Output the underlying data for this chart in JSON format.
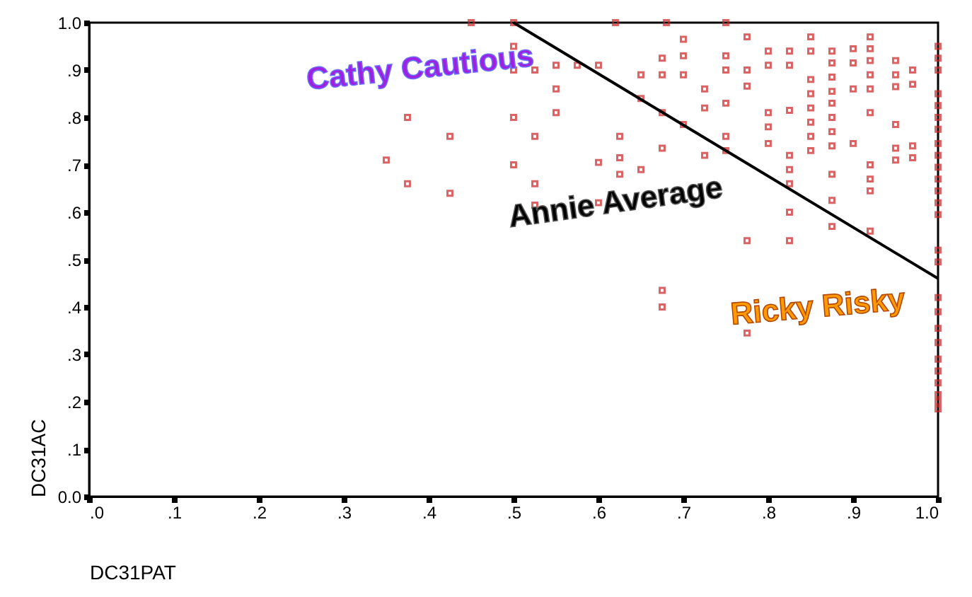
{
  "chart_data": {
    "type": "scatter",
    "xlabel": "DC31PAT",
    "ylabel": "DC31AC",
    "xlim": [
      0,
      1
    ],
    "ylim": [
      0,
      1
    ],
    "xticks": [
      {
        "value": 0,
        "label": ".0"
      },
      {
        "value": 0.1,
        "label": ".1"
      },
      {
        "value": 0.2,
        "label": ".2"
      },
      {
        "value": 0.3,
        "label": ".3"
      },
      {
        "value": 0.4,
        "label": ".4"
      },
      {
        "value": 0.5,
        "label": ".5"
      },
      {
        "value": 0.6,
        "label": ".6"
      },
      {
        "value": 0.7,
        "label": ".7"
      },
      {
        "value": 0.8,
        "label": ".8"
      },
      {
        "value": 0.9,
        "label": ".9"
      },
      {
        "value": 1,
        "label": "1.0"
      }
    ],
    "yticks": [
      {
        "value": 0,
        "label": "0.0"
      },
      {
        "value": 0.1,
        "label": ".1"
      },
      {
        "value": 0.2,
        "label": ".2"
      },
      {
        "value": 0.3,
        "label": ".3"
      },
      {
        "value": 0.4,
        "label": ".4"
      },
      {
        "value": 0.5,
        "label": ".5"
      },
      {
        "value": 0.6,
        "label": ".6"
      },
      {
        "value": 0.7,
        "label": ".7"
      },
      {
        "value": 0.8,
        "label": ".8"
      },
      {
        "value": 0.9,
        "label": ".9"
      },
      {
        "value": 1,
        "label": "1.0"
      }
    ],
    "series": [
      {
        "marker": "square",
        "color": "#cc2222",
        "x": [
          0.45,
          0.5,
          0.62,
          0.68,
          0.5,
          0.5,
          0.525,
          0.55,
          0.55,
          0.575,
          0.6,
          0.55,
          0.65,
          0.65,
          0.675,
          0.675,
          0.375,
          0.425,
          0.5,
          0.525,
          0.35,
          0.375,
          0.425,
          0.5,
          0.525,
          0.525,
          0.6,
          0.625,
          0.625,
          0.625,
          0.65,
          0.6,
          0.675,
          0.675,
          0.75,
          0.7,
          0.7,
          0.7,
          0.725,
          0.725,
          0.75,
          0.75,
          0.75,
          0.775,
          0.775,
          0.775,
          0.8,
          0.8,
          0.825,
          0.825,
          0.85,
          0.85,
          0.875,
          0.9,
          0.92,
          0.92,
          0.875,
          0.9,
          0.92,
          0.95,
          0.92,
          0.95,
          0.97,
          0.85,
          0.875,
          0.85,
          0.875,
          0.9,
          0.92,
          0.95,
          0.97,
          0.85,
          0.875,
          0.8,
          0.825,
          0.92,
          0.85,
          0.875,
          0.8,
          0.95,
          0.85,
          0.875,
          0.8,
          0.85,
          0.875,
          0.9,
          0.95,
          0.97,
          0.95,
          0.97,
          0.725,
          0.75,
          0.75,
          0.7,
          0.825,
          0.825,
          0.825,
          0.875,
          0.92,
          0.92,
          0.92,
          0.825,
          0.875,
          0.875,
          0.92,
          0.775,
          0.825,
          0.675,
          0.675,
          0.775,
          1,
          1,
          1,
          1,
          1,
          1,
          1,
          1,
          1,
          1,
          1,
          1,
          1,
          1,
          1,
          1,
          1,
          1,
          1,
          1,
          1,
          1,
          1,
          1,
          1,
          1
        ],
        "values": [
          1,
          1,
          1,
          1,
          0.95,
          0.9,
          0.9,
          0.91,
          0.86,
          0.91,
          0.91,
          0.81,
          0.89,
          0.84,
          0.925,
          0.81,
          0.8,
          0.76,
          0.8,
          0.76,
          0.71,
          0.66,
          0.64,
          0.7,
          0.66,
          0.615,
          0.705,
          0.76,
          0.715,
          0.68,
          0.69,
          0.62,
          0.735,
          0.89,
          1,
          0.965,
          0.93,
          0.89,
          0.86,
          0.82,
          0.93,
          0.9,
          0.83,
          0.97,
          0.9,
          0.866,
          0.94,
          0.91,
          0.94,
          0.91,
          0.97,
          0.94,
          0.94,
          0.945,
          0.97,
          0.945,
          0.915,
          0.915,
          0.92,
          0.92,
          0.89,
          0.89,
          0.9,
          0.88,
          0.885,
          0.85,
          0.855,
          0.86,
          0.86,
          0.865,
          0.87,
          0.82,
          0.83,
          0.81,
          0.815,
          0.81,
          0.79,
          0.8,
          0.78,
          0.785,
          0.76,
          0.77,
          0.745,
          0.73,
          0.74,
          0.745,
          0.735,
          0.74,
          0.71,
          0.715,
          0.72,
          0.76,
          0.73,
          0.785,
          0.72,
          0.69,
          0.66,
          0.68,
          0.7,
          0.67,
          0.645,
          0.6,
          0.625,
          0.57,
          0.56,
          0.54,
          0.54,
          0.435,
          0.4,
          0.345,
          0.95,
          0.925,
          0.9,
          0.85,
          0.825,
          0.8,
          0.775,
          0.745,
          0.72,
          0.695,
          0.67,
          0.645,
          0.62,
          0.595,
          0.52,
          0.495,
          0.42,
          0.39,
          0.355,
          0.325,
          0.29,
          0.265,
          0.24,
          0.215,
          0.185,
          0.2
        ]
      },
      {
        "type": "line",
        "color": "#000000",
        "x": [
          0.5,
          1
        ],
        "values": [
          1,
          0.46
        ]
      }
    ],
    "annotations": [
      "Cathy Cautious",
      "Annie Average",
      "Ricky Risky"
    ]
  }
}
